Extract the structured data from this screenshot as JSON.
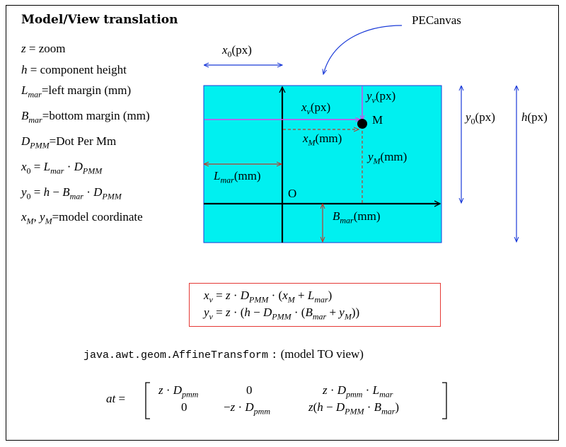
{
  "title": "Model/View translation",
  "definitions": {
    "zoom": "z = zoom",
    "height": "h = component height",
    "left_margin": "L_mar=left margin (mm)",
    "bottom_margin": "B_mar=bottom margin (mm)",
    "dpmm": "D_PMM=Dot Per Mm",
    "x0": "x_0 = L_mar · D_PMM",
    "y0": "y_0 = h − B_mar · D_PMM",
    "model": "x_M, y_M=model coordinate"
  },
  "diagram": {
    "pecanvas": "PECanvas",
    "x0_px": "x0(px)",
    "xv_px": "xv(px)",
    "yv_px": "yv(px)",
    "point_m": "M",
    "xm_mm": "xM(mm)",
    "ym_mm": "yM(mm)",
    "lmar_mm": "Lmar(mm)",
    "origin": "O",
    "bmar_mm": "Bmar(mm)",
    "y0_px": "y0(px)",
    "h_px": "h(px)",
    "canvas_color": "#00f0f0",
    "magenta": "#e23ee8",
    "dark_red": "#c0392b",
    "blue": "#1a3ad8"
  },
  "formulas": {
    "xv": "xv = z · DPMM · (xM + Lmar)",
    "yv": "yv = z · (h − DPMM · (Bmar + yM))"
  },
  "java": {
    "class_name": "java.awt.geom.AffineTransform",
    "colon": ":",
    "description": "(model TO view)"
  },
  "matrix": {
    "lhs": "at =",
    "r1c1": "z · Dpmm",
    "r1c2": "0",
    "r1c3": "z · Dpmm · Lmar",
    "r2c1": "0",
    "r2c2": "−z · Dpmm",
    "r2c3": "z(h − DPMM · Bmar)"
  }
}
